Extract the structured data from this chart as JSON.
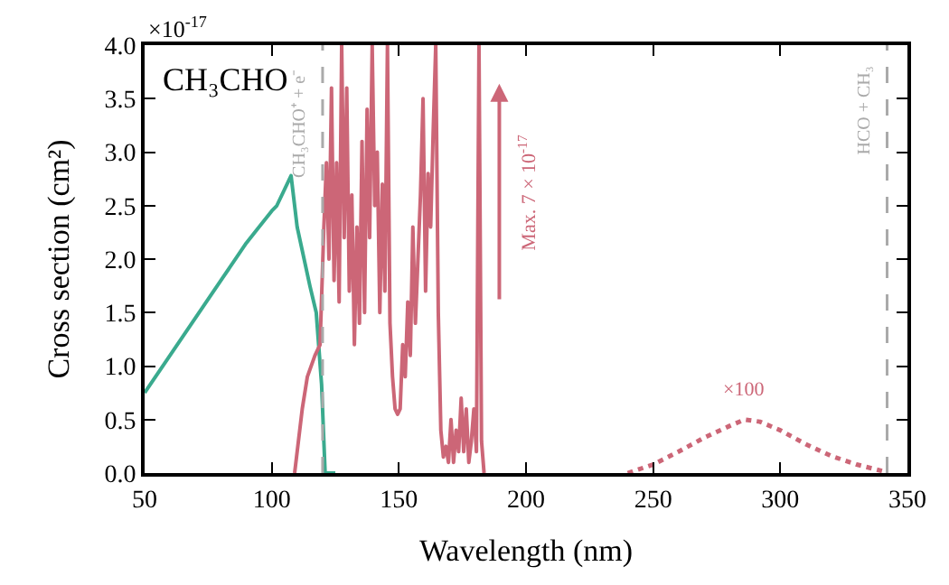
{
  "chart_data": {
    "type": "line",
    "title": "CH₃CHO",
    "xlabel": "Wavelength (nm)",
    "ylabel": "Cross section (cm²)",
    "xlim": [
      50,
      350
    ],
    "xticks": [
      50,
      100,
      150,
      200,
      250,
      300,
      350
    ],
    "ylim": [
      0,
      4.0
    ],
    "yticks": [
      {
        "value": 0,
        "label": "0.0"
      },
      {
        "value": 0.5,
        "label": "0.5"
      },
      {
        "value": 1,
        "label": "1.0"
      },
      {
        "value": 1.5,
        "label": "1.5"
      },
      {
        "value": 2,
        "label": "2.0"
      },
      {
        "value": 2.5,
        "label": "2.5"
      },
      {
        "value": 3,
        "label": "3.0"
      },
      {
        "value": 3.5,
        "label": "3.5"
      },
      {
        "value": 4,
        "label": "4.0"
      }
    ],
    "series": [
      {
        "color": "#3aaa8e",
        "line_style": "solid",
        "x": [
          50,
          60,
          70,
          80,
          90,
          100,
          102,
          107.6,
          110,
          112,
          115,
          117.5,
          119.6,
          121,
          125
        ],
        "values": [
          0.75,
          1.1,
          1.45,
          1.8,
          2.15,
          2.45,
          2.5,
          2.78,
          2.3,
          2.08,
          1.75,
          1.5,
          0.83,
          0,
          0
        ]
      },
      {
        "color": "#cc6677",
        "line_style": "solid",
        "x": [
          109,
          112,
          114,
          117,
          119,
          120.5,
          121.5,
          122.5,
          123.5,
          124.5,
          125.5,
          126.5,
          127.5,
          128.5,
          129.5,
          130.5,
          131.5,
          132.5,
          133.5,
          134.5,
          135.5,
          136.5,
          137.5,
          138.5,
          139.5,
          140.5,
          141.5,
          142.5,
          143.5,
          144.5,
          145.5,
          146.5,
          147.5,
          148.5,
          149.5,
          150.5,
          151.5,
          152.5,
          153.5,
          154.5,
          155.5,
          156.5,
          157.5,
          158.5,
          159.5,
          160.5,
          161.5,
          162.5,
          163.5,
          164.5,
          165.5,
          166.5,
          167.5,
          168.5,
          169.5,
          170.5,
          171.5,
          172.5,
          173.5,
          174.5,
          175.5,
          176.5,
          177.5,
          178.5,
          179.5,
          180.5,
          181.5,
          182.5,
          183.5
        ],
        "values": [
          0,
          0.6,
          0.9,
          1.1,
          1.2,
          2.3,
          2.9,
          2.0,
          3.6,
          1.8,
          2.9,
          1.6,
          4.0,
          2.2,
          3.6,
          1.7,
          2.6,
          1.2,
          2.3,
          1.4,
          3.1,
          1.5,
          3.4,
          2.2,
          4.0,
          2.5,
          3.0,
          1.5,
          2.7,
          1.7,
          4.0,
          1.4,
          0.9,
          0.6,
          0.55,
          0.6,
          1.2,
          0.9,
          1.6,
          1.1,
          2.3,
          1.4,
          2.0,
          2.6,
          3.5,
          1.7,
          2.8,
          2.3,
          3.2,
          4.0,
          1.5,
          0.4,
          0.15,
          0.25,
          0.1,
          0.5,
          0.1,
          0.4,
          0.2,
          0.7,
          0.2,
          0.6,
          0.1,
          0.3,
          0.6,
          0.2,
          4.0,
          0.3,
          0
        ]
      },
      {
        "color": "#cc6677",
        "line_style": "dotted",
        "x": [
          240,
          250,
          260,
          270,
          280,
          286,
          292,
          300,
          310,
          320,
          330,
          340
        ],
        "values": [
          0,
          0.08,
          0.2,
          0.33,
          0.44,
          0.5,
          0.48,
          0.4,
          0.27,
          0.16,
          0.08,
          0.02
        ]
      }
    ],
    "ref_lines": [
      {
        "axis": "x",
        "value": 120,
        "label": "CH₃CHO⁺ + e⁻",
        "color": "#aaaaaa",
        "line_style": "dashed"
      },
      {
        "axis": "x",
        "value": 342,
        "label": "HCO + CH₃",
        "color": "#aaaaaa",
        "line_style": "dashed"
      }
    ],
    "annotations": [
      "×10$^{-17}$",
      "Max. 7 × 10$^{-17}$",
      "×100"
    ]
  }
}
